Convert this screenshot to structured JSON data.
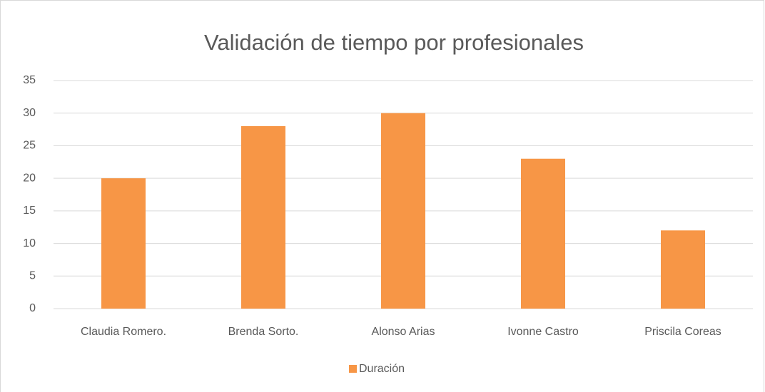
{
  "chart_data": {
    "type": "bar",
    "title": "Validación de tiempo por profesionales",
    "categories": [
      "Claudia Romero.",
      "Brenda Sorto.",
      "Alonso Arias",
      "Ivonne Castro",
      "Priscila Coreas"
    ],
    "series": [
      {
        "name": "Duración",
        "color": "#f79646",
        "values": [
          20,
          28,
          30,
          23,
          12
        ]
      }
    ],
    "ylim": [
      0,
      35
    ],
    "yticks": [
      0,
      5,
      10,
      15,
      20,
      25,
      30,
      35
    ],
    "grid": true,
    "legend": "bottom"
  }
}
